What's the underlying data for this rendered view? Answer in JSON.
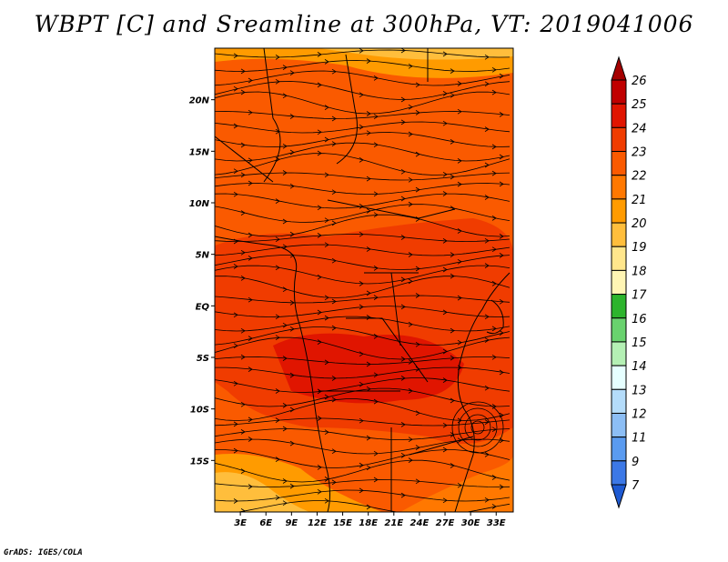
{
  "title": "WBPT [C] and Sreamline at 300hPa, VT: 2019041006",
  "credit": "GrADS: IGES/COLA",
  "chart_data": {
    "type": "heatmap",
    "title": "WBPT [C] and Sreamline at 300hPa, VT: 2019041006",
    "variable": "WBPT [C]",
    "overlay": "streamlines",
    "level": "300hPa",
    "valid_time": "2019041006",
    "x_ticks": [
      "3E",
      "6E",
      "9E",
      "12E",
      "15E",
      "18E",
      "21E",
      "24E",
      "27E",
      "30E",
      "33E"
    ],
    "x_values": [
      3,
      6,
      9,
      12,
      15,
      18,
      21,
      24,
      27,
      30,
      33
    ],
    "xlim": [
      0,
      35
    ],
    "y_ticks": [
      "20N",
      "15N",
      "10N",
      "5N",
      "EQ",
      "5S",
      "10S",
      "15S"
    ],
    "y_values": [
      20,
      15,
      10,
      5,
      0,
      -5,
      -10,
      -15
    ],
    "ylim": [
      -20,
      25
    ],
    "colorbar": {
      "labels": [
        "26",
        "25",
        "24",
        "23",
        "22",
        "21",
        "20",
        "19",
        "18",
        "17",
        "16",
        "15",
        "14",
        "13",
        "12",
        "11",
        "9",
        "7"
      ],
      "colors": [
        "#a50000",
        "#c00000",
        "#e01500",
        "#f03c00",
        "#fa5a00",
        "#ff7800",
        "#ff9b00",
        "#ffbe3c",
        "#ffe68c",
        "#fff5b4",
        "#2db42d",
        "#69d26e",
        "#b4f0b4",
        "#e6ffff",
        "#b4dcfa",
        "#8cbef5",
        "#5a9bf0",
        "#3c78e6",
        "#1e5ad2"
      ]
    },
    "field_description": "values mostly 22-24 C over central Africa; 21-22 C in the far north and far south-west"
  }
}
